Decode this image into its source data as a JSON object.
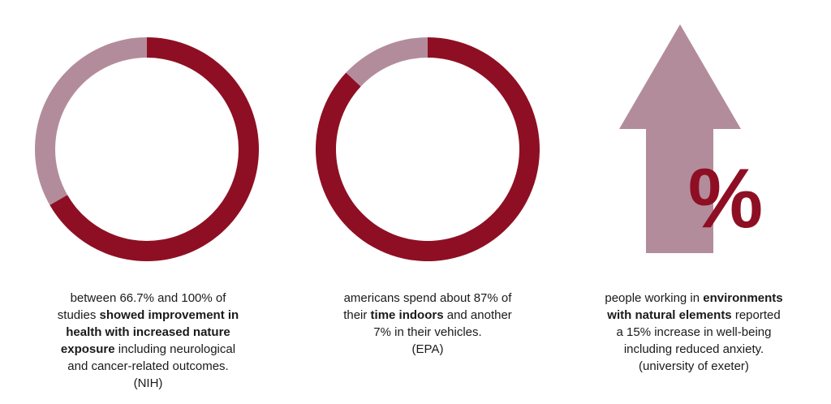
{
  "colors": {
    "primary": "#8e0f23",
    "secondary": "#b38c9c",
    "text": "#1a1a1a"
  },
  "chart_data": [
    {
      "type": "pie",
      "variant": "donut",
      "slices": [
        {
          "value": 66.7,
          "color": "#8e0f23"
        },
        {
          "value": 33.3,
          "color": "#b38c9c"
        }
      ],
      "caption": {
        "lines": [
          [
            {
              "text": "between 66.7% and 100% of",
              "bold": false
            }
          ],
          [
            {
              "text": "studies ",
              "bold": false
            },
            {
              "text": "showed improvement in",
              "bold": true
            }
          ],
          [
            {
              "text": "health with increased nature",
              "bold": true
            }
          ],
          [
            {
              "text": "exposure",
              "bold": true
            },
            {
              "text": " including neurological",
              "bold": false
            }
          ],
          [
            {
              "text": "and cancer-related outcomes.",
              "bold": false
            }
          ],
          [
            {
              "text": "(NIH)",
              "bold": false
            }
          ]
        ]
      }
    },
    {
      "type": "pie",
      "variant": "donut",
      "slices": [
        {
          "value": 87,
          "color": "#8e0f23"
        },
        {
          "value": 13,
          "color": "#b38c9c"
        }
      ],
      "caption": {
        "lines": [
          [
            {
              "text": "americans spend about 87% of",
              "bold": false
            }
          ],
          [
            {
              "text": "their ",
              "bold": false
            },
            {
              "text": "time indoors",
              "bold": true
            },
            {
              "text": " and another",
              "bold": false
            }
          ],
          [
            {
              "text": "7% in their vehicles.",
              "bold": false
            }
          ],
          [
            {
              "text": "(EPA)",
              "bold": false
            }
          ]
        ]
      }
    },
    {
      "type": "other",
      "variant": "up-arrow-percent",
      "symbol": "%",
      "caption": {
        "lines": [
          [
            {
              "text": "people working in ",
              "bold": false
            },
            {
              "text": "environments",
              "bold": true
            }
          ],
          [
            {
              "text": "with natural elements",
              "bold": true
            },
            {
              "text": " reported",
              "bold": false
            }
          ],
          [
            {
              "text": "a 15% increase in well-being",
              "bold": false
            }
          ],
          [
            {
              "text": "including reduced anxiety.",
              "bold": false
            }
          ],
          [
            {
              "text": "(university of exeter)",
              "bold": false
            }
          ]
        ]
      }
    }
  ]
}
